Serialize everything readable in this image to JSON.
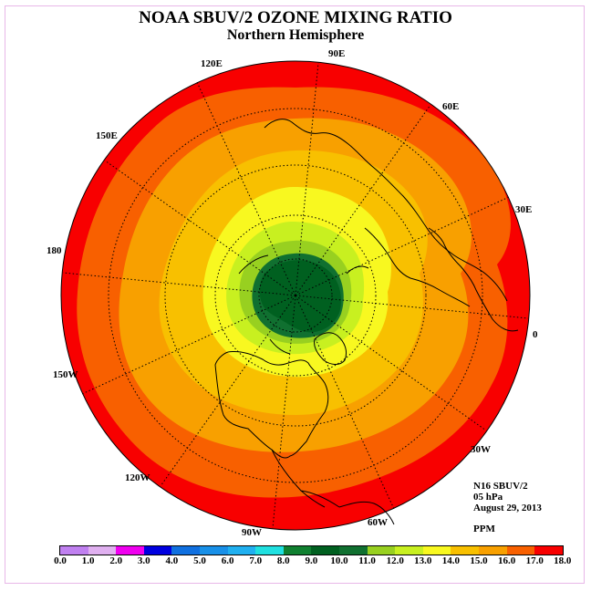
{
  "title": "NOAA SBUV/2 OZONE MIXING RATIO",
  "subtitle": "Northern Hemisphere",
  "longitude_labels": [
    "90E",
    "60E",
    "30E",
    "0",
    "30W",
    "60W",
    "90W",
    "120W",
    "150W",
    "180",
    "150E",
    "120E"
  ],
  "info": {
    "instrument": "N16 SBUV/2",
    "level": "05 hPa",
    "date": "August 29, 2013",
    "units": "PPM"
  },
  "colorbar": {
    "labels": [
      "0.0",
      "1.0",
      "2.0",
      "3.0",
      "4.0",
      "5.0",
      "6.0",
      "7.0",
      "8.0",
      "9.0",
      "10.0",
      "11.0",
      "12.0",
      "13.0",
      "14.0",
      "15.0",
      "16.0",
      "17.0",
      "18.0"
    ],
    "colors": [
      "#c080f0",
      "#e0b0f0",
      "#f000f0",
      "#0000e0",
      "#1070e0",
      "#1890e8",
      "#20b0f0",
      "#20e0e0",
      "#108030",
      "#006020",
      "#107030",
      "#98d020",
      "#c8f020",
      "#f8f820",
      "#f8c000",
      "#f8a000",
      "#f86000",
      "#f80000",
      "#a05030"
    ]
  },
  "chart_data": {
    "type": "heatmap",
    "projection": "north polar stereographic",
    "variable": "ozone mixing ratio",
    "units": "PPM",
    "pressure_level": "05 hPa",
    "date": "August 29, 2013",
    "color_levels": [
      0.0,
      1.0,
      2.0,
      3.0,
      4.0,
      5.0,
      6.0,
      7.0,
      8.0,
      9.0,
      10.0,
      11.0,
      12.0,
      13.0,
      14.0,
      15.0,
      16.0,
      17.0,
      18.0
    ],
    "bands": [
      {
        "range": [
          16.0,
          17.0
        ],
        "color": "#f80000",
        "region": "lowest latitudes (outer ring)"
      },
      {
        "range": [
          15.0,
          16.0
        ],
        "color": "#f86000",
        "region": "subtropics"
      },
      {
        "range": [
          14.0,
          15.0
        ],
        "color": "#f8a000",
        "region": "mid-latitudes"
      },
      {
        "range": [
          13.0,
          14.0
        ],
        "color": "#f8c000",
        "region": "mid-latitudes"
      },
      {
        "range": [
          12.0,
          13.0
        ],
        "color": "#f8f820",
        "region": "high latitudes"
      },
      {
        "range": [
          11.0,
          12.0
        ],
        "color": "#c8f020",
        "region": "high latitudes"
      },
      {
        "range": [
          10.0,
          11.0
        ],
        "color": "#98d020",
        "region": "polar edge"
      },
      {
        "range": [
          9.0,
          10.0
        ],
        "color": "#107030",
        "region": "near pole"
      },
      {
        "range": [
          8.0,
          9.0
        ],
        "color": "#006020",
        "region": "pole (minimum)"
      }
    ]
  }
}
